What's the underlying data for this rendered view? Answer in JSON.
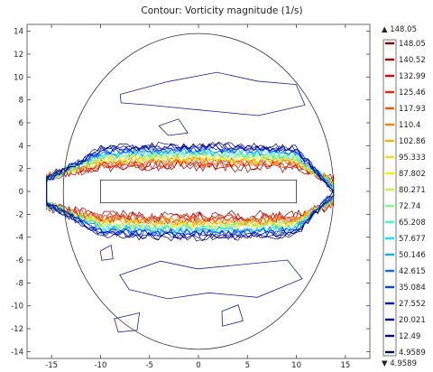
{
  "chart_data": {
    "type": "contour",
    "title": "Contour: Vorticity magnitude (1/s)",
    "xlim": [
      -17.5,
      17.5
    ],
    "ylim": [
      -14.6,
      14.6
    ],
    "x_ticks": [
      "-15",
      "-10",
      "-5",
      "0",
      "5",
      "10",
      "15"
    ],
    "y_ticks": [
      "14",
      "12",
      "10",
      "8",
      "6",
      "4",
      "2",
      "0",
      "-2",
      "-4",
      "-6",
      "-8",
      "-10",
      "-12",
      "-14"
    ],
    "domain_circle": {
      "center": [
        0,
        0
      ],
      "radius": 13.8
    },
    "obstacle_rect": {
      "x": [
        -10,
        10
      ],
      "y": [
        -1,
        1
      ]
    },
    "colorbar": {
      "max_label": "148.05",
      "min_label": "4.9589",
      "levels": [
        "148.05",
        "140.52",
        "132.99",
        "125.46",
        "117.93",
        "110.4",
        "102.86",
        "95.333",
        "87.802",
        "80.271",
        "72.74",
        "65.208",
        "57.677",
        "50.146",
        "42.615",
        "35.084",
        "27.552",
        "20.021",
        "12.49",
        "4.9589"
      ],
      "colors": [
        "#800000",
        "#b00000",
        "#e00000",
        "#ff2000",
        "#ff5000",
        "#ff8000",
        "#ffb000",
        "#ffd800",
        "#e8f000",
        "#b8ff40",
        "#80ff80",
        "#40ffc0",
        "#00e8ff",
        "#00b0ff",
        "#0070ff",
        "#0040ff",
        "#0010e0",
        "#0000c0",
        "#000090",
        "#000060"
      ]
    }
  }
}
